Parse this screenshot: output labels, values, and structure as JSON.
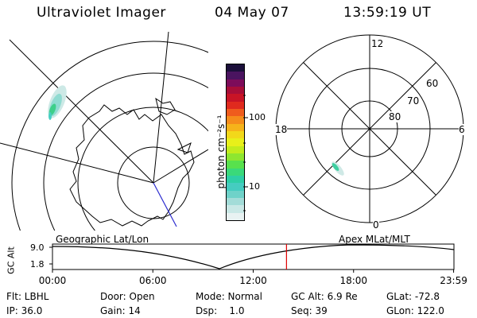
{
  "header": {
    "title": "Ultraviolet Imager",
    "date": "04 May 07",
    "time": "13:59:19 UT"
  },
  "colorbar": {
    "unit": "photon cm⁻²s⁻¹",
    "ticks": [
      "100",
      "10"
    ],
    "colors": [
      "#e8f2f2",
      "#c9e8e6",
      "#a3dcd8",
      "#6fd2c9",
      "#45ccc0",
      "#2ecfa6",
      "#3ad97a",
      "#58e14d",
      "#8ee630",
      "#c2ec1d",
      "#e8f01a",
      "#f2d81a",
      "#f6b31a",
      "#f58c1b",
      "#ef5c1d",
      "#e02a1e",
      "#c81426",
      "#a80e38",
      "#7d0c5a",
      "#4a1460",
      "#1b0f3a"
    ]
  },
  "left_map": {
    "caption": "Geographic Lat/Lon"
  },
  "right_map": {
    "caption": "Apex MLat/MLT",
    "mlt_labels": [
      "12",
      "18",
      "6",
      "0"
    ],
    "lat_labels": [
      "60",
      "70",
      "80"
    ]
  },
  "altitude_plot": {
    "axis_label": "GC Alt",
    "y_ticks": [
      "9.0",
      "1.8"
    ],
    "x_ticks": [
      "00:00",
      "06:00",
      "12:00",
      "18:00",
      "23:59"
    ],
    "x_hours": [
      0,
      6,
      12,
      18,
      23.98
    ],
    "marker_hour": 13.99
  },
  "info": {
    "row1": {
      "filter": "Flt: LBHL",
      "door": "Door: Open",
      "mode": "Mode: Normal",
      "gc_alt": "GC Alt: 6.9 Re",
      "glat": "GLat: -72.8"
    },
    "row2": {
      "ip": "IP: 36.0",
      "gain": "Gain: 14",
      "dsp": "Dsp:    1.0",
      "seq": "Seq: 39",
      "glon": "GLon: 122.0"
    }
  }
}
